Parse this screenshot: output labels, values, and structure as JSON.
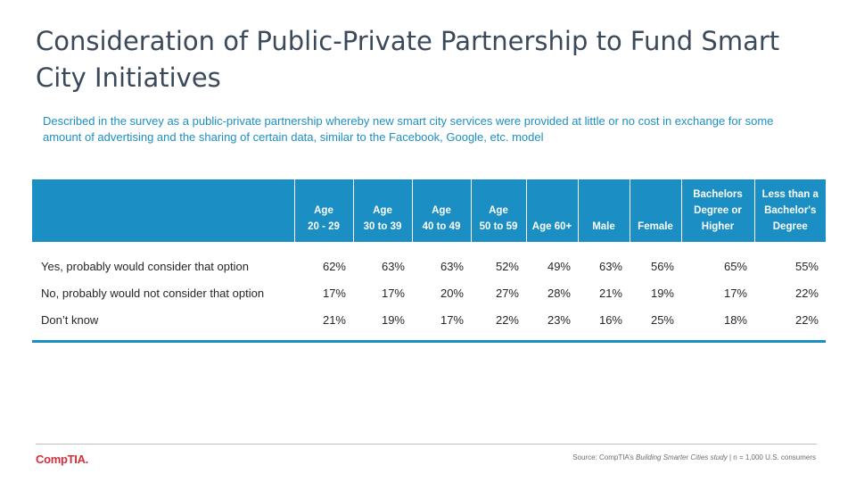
{
  "title": "Consideration of Public-Private Partnership to Fund Smart City Initiatives",
  "subtitle": "Described in the survey as a public-private partnership whereby new smart city services were provided at little or no cost in exchange for some amount of advertising and the sharing of certain data, similar to the Facebook, Google, etc. model",
  "table": {
    "headers": [
      "",
      "Age\n20 - 29",
      "Age\n30 to 39",
      "Age\n40 to 49",
      "Age\n50 to 59",
      "Age 60+",
      "Male",
      "Female",
      "Bachelors\nDegree or\nHigher",
      "Less than a\nBachelor's\nDegree"
    ],
    "rows": [
      {
        "label": "Yes, probably would consider that option",
        "values": [
          "62%",
          "63%",
          "63%",
          "52%",
          "49%",
          "63%",
          "56%",
          "65%",
          "55%"
        ]
      },
      {
        "label": "No, probably would not consider that option",
        "values": [
          "17%",
          "17%",
          "20%",
          "27%",
          "28%",
          "21%",
          "19%",
          "17%",
          "22%"
        ]
      },
      {
        "label": "Don’t know",
        "values": [
          "21%",
          "19%",
          "17%",
          "22%",
          "23%",
          "16%",
          "25%",
          "18%",
          "22%"
        ]
      }
    ]
  },
  "footer": {
    "logo": "CompTIA.",
    "source_prefix": "Source: CompTIA’s ",
    "source_italic": "Building Smarter Cities study",
    "source_suffix": " | n = 1,000 U.S. consumers"
  },
  "colors": {
    "accent": "#1b8fc4",
    "title": "#3b4a5a",
    "logo": "#d32f3a"
  }
}
